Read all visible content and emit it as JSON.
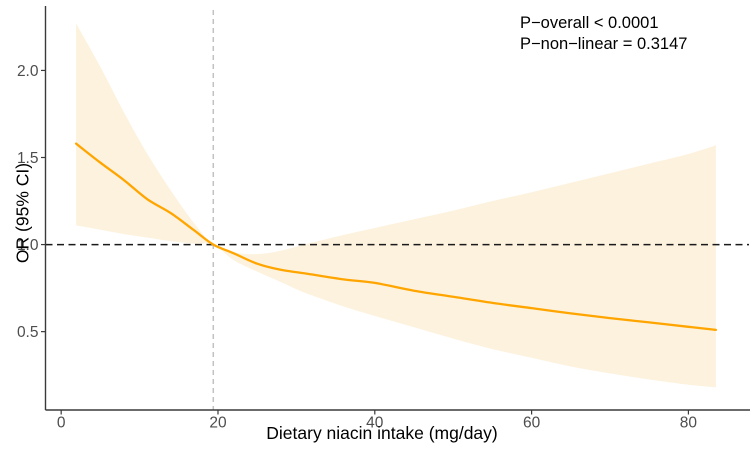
{
  "figure": {
    "background": "#ffffff",
    "annotation": {
      "line1": "P−overall < 0.0001",
      "line2": "P−non−linear = 0.3147"
    }
  },
  "chart_data": {
    "type": "line",
    "title": "",
    "xlabel": "Dietary niacin intake (mg/day)",
    "ylabel": "OR (95% CI)",
    "xlim": [
      -2.0,
      87.6
    ],
    "ylim": [
      0.05,
      2.37
    ],
    "grid": false,
    "legend": false,
    "x_ticks": {
      "values": [
        0,
        20,
        40,
        60,
        80
      ],
      "labels": [
        "0",
        "20",
        "40",
        "60",
        "80"
      ]
    },
    "y_ticks": {
      "values": [
        0.5,
        1.0,
        1.5,
        2.0
      ],
      "labels": [
        "0.5",
        "1.0",
        "1.5",
        "2.0"
      ]
    },
    "reference_lines": {
      "hline_or": 1.0,
      "vline_x": 19.4
    },
    "colors": {
      "curve": "#FFA500",
      "ribbon": "#FDF2DE",
      "hline": "#1a1a1a",
      "vline": "#c2c2c2",
      "axis": "#3a3a3a",
      "tick_label": "#4d4d4d",
      "text": "#000000"
    },
    "x": [
      1.9,
      5,
      8,
      11,
      14,
      17,
      19.4,
      22,
      25,
      28,
      31,
      36,
      40,
      45,
      50,
      55,
      60,
      65,
      70,
      75,
      80,
      83.5
    ],
    "series": [
      {
        "name": "or",
        "values": [
          1.58,
          1.47,
          1.37,
          1.26,
          1.18,
          1.08,
          1.0,
          0.95,
          0.89,
          0.855,
          0.835,
          0.8,
          0.78,
          0.735,
          0.7,
          0.665,
          0.635,
          0.605,
          0.578,
          0.553,
          0.528,
          0.51
        ]
      },
      {
        "name": "upper_95ci",
        "values": [
          2.27,
          2.02,
          1.76,
          1.52,
          1.31,
          1.12,
          1.0,
          0.955,
          0.945,
          0.965,
          1.0,
          1.055,
          1.095,
          1.145,
          1.195,
          1.25,
          1.3,
          1.355,
          1.41,
          1.465,
          1.52,
          1.57
        ]
      },
      {
        "name": "lower_95ci",
        "values": [
          1.11,
          1.085,
          1.06,
          1.04,
          1.02,
          1.005,
          1.0,
          0.91,
          0.845,
          0.785,
          0.725,
          0.645,
          0.59,
          0.525,
          0.46,
          0.4,
          0.35,
          0.3,
          0.26,
          0.225,
          0.195,
          0.18
        ]
      }
    ]
  }
}
